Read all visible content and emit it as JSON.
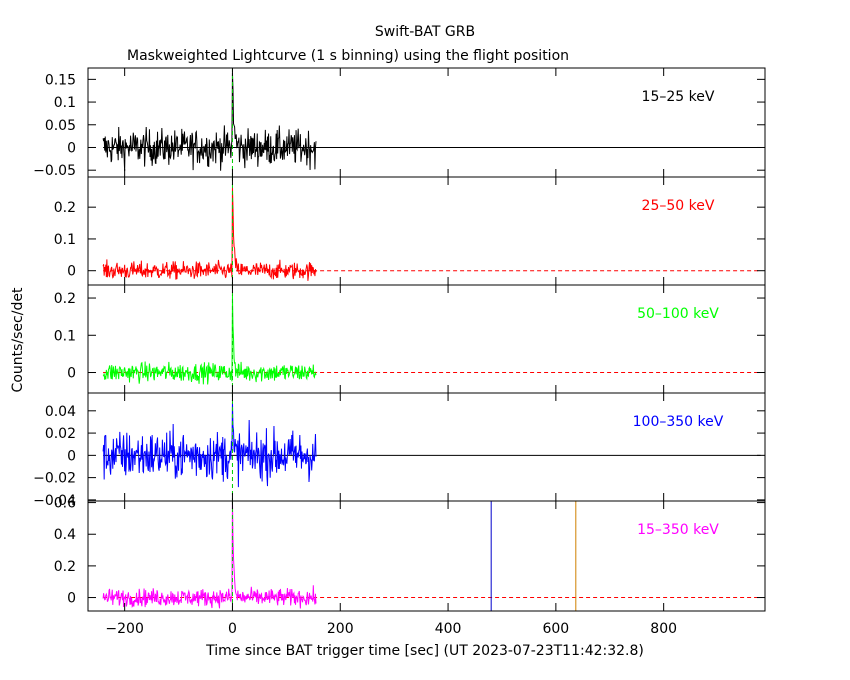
{
  "header": {
    "title": "Swift-BAT GRB",
    "subtitle": "Maskweighted Lightcurve (1 s binning) using the flight position"
  },
  "colors": {
    "axes": "#000000",
    "zero_line": "#000000",
    "dashed_zero": "#ff0000",
    "trigger_line": "#00cc00",
    "marker_blue": "#0000cc",
    "marker_orange": "#d08000"
  },
  "chart_data": {
    "type": "line",
    "xlabel": "Time since BAT trigger time [sec] (UT 2023-07-23T11:42:32.8)",
    "ylabel": "Counts/sec/det",
    "xlim": [
      -268,
      988
    ],
    "x_ticks": [
      -200,
      0,
      200,
      400,
      600,
      800
    ],
    "data_range": [
      -240,
      155
    ],
    "zero_extends_to": 980,
    "vertical_markers": [
      {
        "x": 0,
        "color": "#00cc00",
        "style": "dashed",
        "panels": "all"
      },
      {
        "x": 480,
        "color": "#0000cc",
        "style": "solid",
        "panels": "last"
      },
      {
        "x": 637,
        "color": "#d08000",
        "style": "solid",
        "panels": "last"
      }
    ],
    "panels": [
      {
        "label": "15–25 keV",
        "color": "#000000",
        "ylim": [
          -0.065,
          0.175
        ],
        "y_ticks": [
          -0.05,
          0,
          0.05,
          0.1,
          0.15
        ],
        "y_tick_labels": [
          "−0.05",
          "0",
          "0.05",
          "0.1",
          "0.15"
        ],
        "noise_sigma": 0.02,
        "peak_time": 0,
        "peak_value": 0.17,
        "decay_seconds": 2.5
      },
      {
        "label": "25–50 keV",
        "color": "#ff0000",
        "ylim": [
          -0.045,
          0.295
        ],
        "y_ticks": [
          0,
          0.1,
          0.2
        ],
        "y_tick_labels": [
          "0",
          "0.1",
          "0.2"
        ],
        "noise_sigma": 0.014,
        "peak_time": 0,
        "peak_value": 0.28,
        "decay_seconds": 2.2
      },
      {
        "label": "50–100 keV",
        "color": "#00ff00",
        "ylim": [
          -0.055,
          0.235
        ],
        "y_ticks": [
          0,
          0.1,
          0.2
        ],
        "y_tick_labels": [
          "0",
          "0.1",
          "0.2"
        ],
        "noise_sigma": 0.013,
        "peak_time": 0,
        "peak_value": 0.22,
        "decay_seconds": 1.8
      },
      {
        "label": "100–350 keV",
        "color": "#0000ff",
        "ylim": [
          -0.041,
          0.056
        ],
        "y_ticks": [
          -0.04,
          -0.02,
          0,
          0.02,
          0.04
        ],
        "y_tick_labels": [
          "−0.04",
          "−0.02",
          "0",
          "0.02",
          "0.04"
        ],
        "noise_sigma": 0.011,
        "peak_time": 0,
        "peak_value": 0.045,
        "decay_seconds": 1.2
      },
      {
        "label": "15–350 keV",
        "color": "#ff00ff",
        "ylim": [
          -0.085,
          0.61
        ],
        "y_ticks": [
          0,
          0.2,
          0.4,
          0.6
        ],
        "y_tick_labels": [
          "0",
          "0.2",
          "0.4",
          "0.6"
        ],
        "noise_sigma": 0.028,
        "peak_time": 0,
        "peak_value": 0.6,
        "decay_seconds": 2.2
      }
    ]
  }
}
